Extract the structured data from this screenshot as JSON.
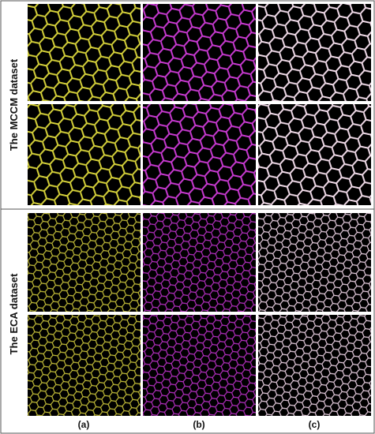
{
  "rows": [
    {
      "label": "The MCCM dataset"
    },
    {
      "label": "The ECA dataset"
    }
  ],
  "columns": [
    {
      "label": "(a)"
    },
    {
      "label": "(b)"
    },
    {
      "label": "(c)"
    }
  ]
}
